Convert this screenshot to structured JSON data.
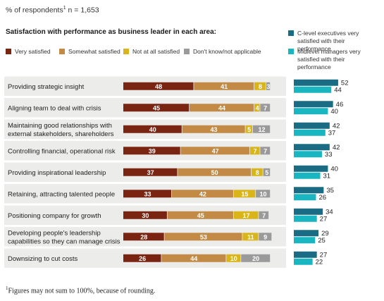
{
  "header": {
    "note": "% of respondents",
    "note_sup": "1",
    "sample": "n = 1,653",
    "subtitle": "Satisfaction with performance as business leader in each area:"
  },
  "footnote": {
    "sup": "1",
    "text": "Figures may not sum to 100%, because of rounding."
  },
  "colors": {
    "very_satisfied": "#7a2412",
    "somewhat_satisfied": "#c28a45",
    "not_at_all": "#d9b51a",
    "dont_know": "#9a9a9a",
    "c_level": "#1a6b84",
    "midlevel": "#19b5c0",
    "row_band": "#ececea"
  },
  "chart_data": [
    {
      "type": "bar",
      "stacked": true,
      "orientation": "horizontal",
      "title": "Satisfaction with performance as business leader in each area:",
      "categories": [
        "Providing strategic insight",
        "Aligning team to deal with crisis",
        "Maintaining good relationships with external stakeholders, shareholders",
        "Controlling financial, operational risk",
        "Providing inspirational leadership",
        "Retaining, attracting talented people",
        "Positioning company for growth",
        "Developing people's leadership capabilities so they can manage crisis",
        "Downsizing to cut costs"
      ],
      "category_lines": [
        [
          "Providing strategic insight"
        ],
        [
          "Aligning team to deal with crisis"
        ],
        [
          "Maintaining good relationships with",
          "external stakeholders, shareholders"
        ],
        [
          "Controlling financial, operational risk"
        ],
        [
          "Providing inspirational leadership"
        ],
        [
          "Retaining, attracting talented people"
        ],
        [
          "Positioning company for growth"
        ],
        [
          "Developing people's leadership",
          "capabilities so they can manage crisis"
        ],
        [
          "Downsizing to cut costs"
        ]
      ],
      "series": [
        {
          "name": "Very satisfied",
          "values": [
            48,
            45,
            40,
            39,
            37,
            33,
            30,
            28,
            26
          ]
        },
        {
          "name": "Somewhat satisfied",
          "values": [
            41,
            44,
            43,
            47,
            50,
            42,
            45,
            53,
            44
          ]
        },
        {
          "name": "Not at all satisfied",
          "values": [
            8,
            4,
            5,
            7,
            8,
            15,
            17,
            11,
            10
          ]
        },
        {
          "name": "Don't know/not applicable",
          "values": [
            3,
            7,
            12,
            7,
            5,
            10,
            7,
            9,
            20
          ]
        }
      ],
      "legend": "top"
    },
    {
      "type": "bar",
      "orientation": "horizontal",
      "categories": [
        "Providing strategic insight",
        "Aligning team to deal with crisis",
        "Maintaining good relationships with external stakeholders, shareholders",
        "Controlling financial, operational risk",
        "Providing inspirational leadership",
        "Retaining, attracting talented people",
        "Positioning company for growth",
        "Developing people's leadership capabilities so they can manage crisis",
        "Downsizing to cut costs"
      ],
      "series": [
        {
          "name": "C-level executives very satisfied with their performance",
          "values": [
            52,
            46,
            42,
            42,
            40,
            35,
            34,
            29,
            27
          ]
        },
        {
          "name": "Midlevel managers very satisfied with their performance",
          "values": [
            44,
            40,
            37,
            33,
            31,
            26,
            27,
            25,
            22
          ]
        }
      ],
      "legend": "top-right"
    }
  ]
}
